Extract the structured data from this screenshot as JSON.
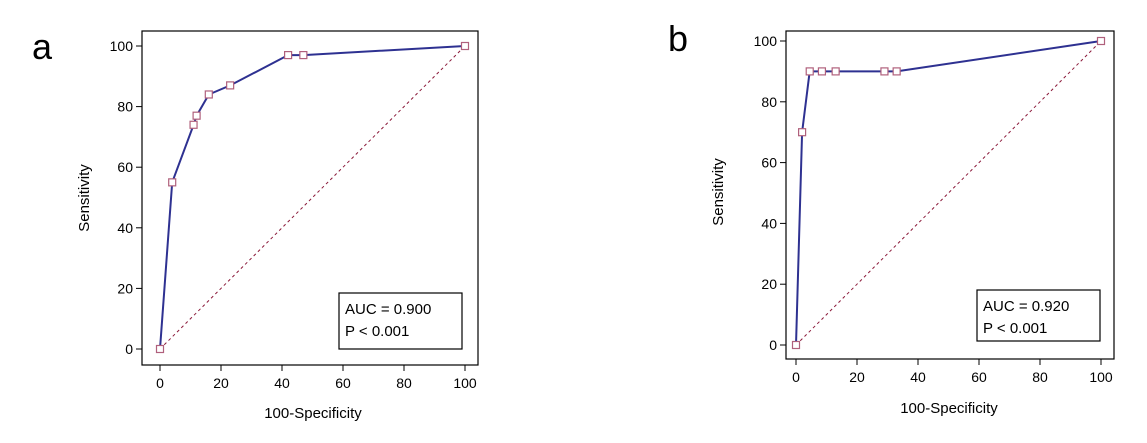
{
  "chart_data": [
    {
      "type": "line",
      "panel_label": "a",
      "xlabel": "100-Specificity",
      "ylabel": "Sensitivity",
      "xlim": [
        0,
        100
      ],
      "ylim": [
        0,
        100
      ],
      "xticks": [
        0,
        20,
        40,
        60,
        80,
        100
      ],
      "yticks": [
        0,
        20,
        40,
        60,
        80,
        100
      ],
      "grid": false,
      "series": [
        {
          "name": "ROC curve",
          "color": "#2e3191",
          "marker_color": "#b0607c",
          "x": [
            0,
            4,
            11,
            12,
            16,
            23,
            42,
            47,
            100
          ],
          "y": [
            0,
            55,
            74,
            77,
            84,
            87,
            97,
            97,
            100
          ]
        },
        {
          "name": "Reference line",
          "color": "#8b1a3a",
          "dashed": true,
          "x": [
            0,
            100
          ],
          "y": [
            0,
            100
          ]
        }
      ],
      "annotation": {
        "position": "bottom-right",
        "lines": [
          "AUC = 0.900",
          "P < 0.001"
        ]
      }
    },
    {
      "type": "line",
      "panel_label": "b",
      "xlabel": "100-Specificity",
      "ylabel": "Sensitivity",
      "xlim": [
        0,
        100
      ],
      "ylim": [
        0,
        100
      ],
      "xticks": [
        0,
        20,
        40,
        60,
        80,
        100
      ],
      "yticks": [
        0,
        20,
        40,
        60,
        80,
        100
      ],
      "grid": false,
      "series": [
        {
          "name": "ROC curve",
          "color": "#2e3191",
          "marker_color": "#b0607c",
          "x": [
            0,
            2,
            4.5,
            8.5,
            13,
            29,
            33,
            100
          ],
          "y": [
            0,
            70,
            90,
            90,
            90,
            90,
            90,
            100
          ]
        },
        {
          "name": "Reference line",
          "color": "#8b1a3a",
          "dashed": true,
          "x": [
            0,
            100
          ],
          "y": [
            0,
            100
          ]
        }
      ],
      "annotation": {
        "position": "bottom-right",
        "lines": [
          "AUC = 0.920",
          "P < 0.001"
        ]
      }
    }
  ]
}
